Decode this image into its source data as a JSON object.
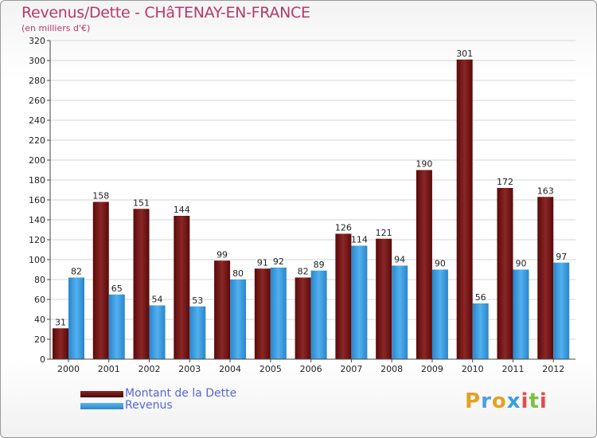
{
  "title": "Revenus/Dette - CHâTENAY-EN-FRANCE",
  "subtitle": "(en milliers d'€)",
  "chart_data": {
    "type": "bar",
    "title": "Revenus/Dette - CHâTENAY-EN-FRANCE",
    "ylabel": "(en milliers d'€)",
    "xlabel": "",
    "categories": [
      "2000",
      "2001",
      "2002",
      "2003",
      "2004",
      "2005",
      "2006",
      "2007",
      "2008",
      "2009",
      "2010",
      "2011",
      "2012"
    ],
    "series": [
      {
        "name": "Montant de la Dette",
        "color": "#7a1c1c",
        "values": [
          31,
          158,
          151,
          144,
          99,
          91,
          82,
          126,
          121,
          190,
          301,
          172,
          163
        ]
      },
      {
        "name": "Revenus",
        "color": "#3a9ee0",
        "values": [
          82,
          65,
          54,
          53,
          80,
          92,
          89,
          114,
          94,
          90,
          56,
          90,
          97
        ]
      }
    ],
    "ylim": [
      0,
      320
    ],
    "yticks": [
      0,
      20,
      40,
      60,
      80,
      100,
      120,
      140,
      160,
      180,
      200,
      220,
      240,
      260,
      280,
      300,
      320
    ],
    "grid": true,
    "legend": "bottom-left"
  },
  "legend": [
    {
      "label": "Montant de la Dette",
      "color": "#6b1010"
    },
    {
      "label": "Revenus",
      "color": "#3a9ee0"
    }
  ],
  "logo": {
    "letters": [
      "P",
      "r",
      "o",
      "x",
      "i",
      "t",
      "i"
    ],
    "colors": [
      "#e8a020",
      "#4aa0e0",
      "#e8a020",
      "#3a9ee0",
      "#e84a4a",
      "#7cc040",
      "#e84a4a"
    ]
  }
}
